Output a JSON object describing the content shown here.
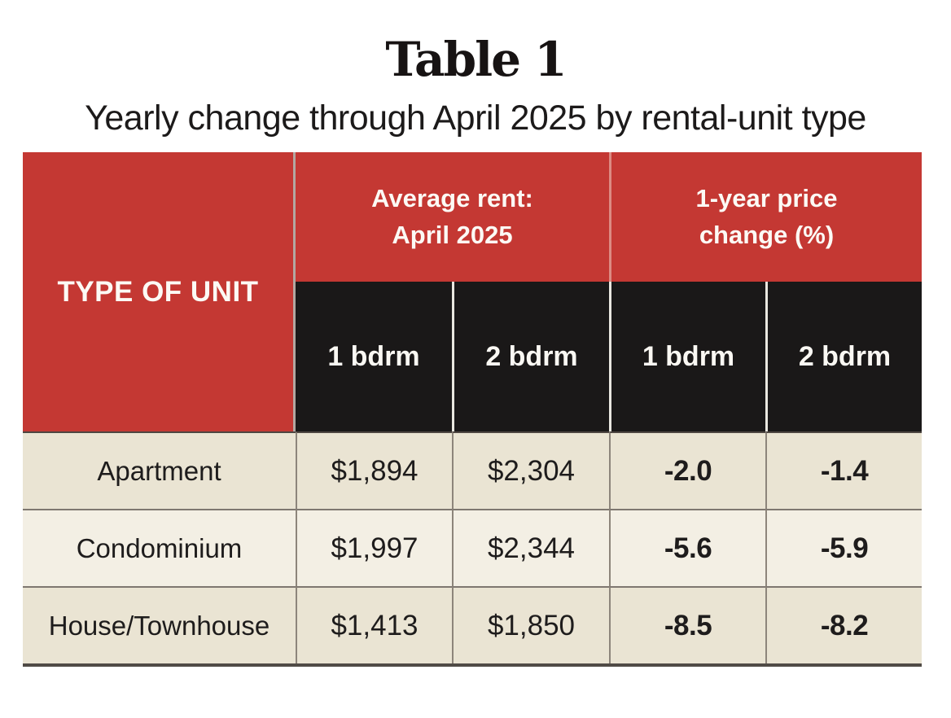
{
  "title": "Table 1",
  "subtitle": "Yearly change through April 2025 by rental-unit type",
  "colors": {
    "header_red": "#c43833",
    "header_black": "#1a1818",
    "row_beige": "#eae4d3",
    "row_beige_light": "#f3efe4",
    "grid_line_vertical": "#8d857b",
    "grid_line_horizontal": "#7e7770",
    "table_bottom_border": "#504b46",
    "header_gap_on_red": "#dc8b83",
    "header_gap_on_black": "#e9e7e0",
    "text_dark": "#1e1c1c",
    "text_white": "#fcfaf5"
  },
  "table": {
    "corner_label": "TYPE OF UNIT",
    "group_headers": [
      {
        "line1": "Average rent:",
        "line2": "April 2025"
      },
      {
        "line1": "1-year price",
        "line2": "change (%)"
      }
    ],
    "sub_headers": [
      "1 bdrm",
      "2 bdrm",
      "1 bdrm",
      "2 bdrm"
    ],
    "rows": [
      {
        "type": "Apartment",
        "rent_1bdrm": "$1,894",
        "rent_2bdrm": "$2,304",
        "change_1bdrm": "-2.0",
        "change_2bdrm": "-1.4"
      },
      {
        "type": "Condominium",
        "rent_1bdrm": "$1,997",
        "rent_2bdrm": "$2,344",
        "change_1bdrm": "-5.6",
        "change_2bdrm": "-5.9"
      },
      {
        "type": "House/Townhouse",
        "rent_1bdrm": "$1,413",
        "rent_2bdrm": "$1,850",
        "change_1bdrm": "-8.5",
        "change_2bdrm": "-8.2"
      }
    ]
  },
  "chart_data": {
    "type": "table",
    "title": "Table 1",
    "subtitle": "Yearly change through April 2025 by rental-unit type",
    "row_header": "TYPE OF UNIT",
    "column_groups": [
      {
        "label": "Average rent: April 2025",
        "columns": [
          "1 bdrm",
          "2 bdrm"
        ]
      },
      {
        "label": "1-year price change (%)",
        "columns": [
          "1 bdrm",
          "2 bdrm"
        ]
      }
    ],
    "rows": [
      {
        "type": "Apartment",
        "avg_rent_1bdrm": 1894,
        "avg_rent_2bdrm": 2304,
        "change_pct_1bdrm": -2.0,
        "change_pct_2bdrm": -1.4
      },
      {
        "type": "Condominium",
        "avg_rent_1bdrm": 1997,
        "avg_rent_2bdrm": 2344,
        "change_pct_1bdrm": -5.6,
        "change_pct_2bdrm": -5.9
      },
      {
        "type": "House/Townhouse",
        "avg_rent_1bdrm": 1413,
        "avg_rent_2bdrm": 1850,
        "change_pct_1bdrm": -8.5,
        "change_pct_2bdrm": -8.2
      }
    ]
  }
}
